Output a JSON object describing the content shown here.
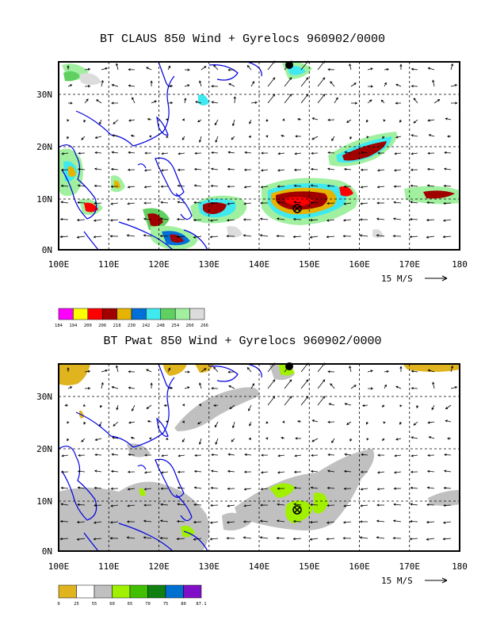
{
  "panel1": {
    "title": "BT CLAUS 850 Wind + Gyrelocs 960902/0000",
    "legend": {
      "labels": [
        "184",
        "194",
        "200",
        "206",
        "218",
        "230",
        "242",
        "248",
        "254",
        "260",
        "266"
      ],
      "colors": [
        "#ff00ff",
        "#ffff00",
        "#ff0000",
        "#a00000",
        "#e6b400",
        "#0070d8",
        "#40e8f0",
        "#60d060",
        "#a0f0a0",
        "#dcdcdc"
      ]
    }
  },
  "panel2": {
    "title": "BT Pwat 850 Wind + Gyrelocs 960902/0000",
    "legend": {
      "labels": [
        "0",
        "25",
        "55",
        "60",
        "65",
        "70",
        "75",
        "80",
        "87.1"
      ],
      "colors": [
        "#e0b41e",
        "#ffffff",
        "#c0c0c0",
        "#a0f000",
        "#40c000",
        "#108010",
        "#0070d0",
        "#8010c8"
      ]
    }
  },
  "axes": {
    "x_labels": [
      "100E",
      "110E",
      "120E",
      "130E",
      "140E",
      "150E",
      "160E",
      "170E",
      "180"
    ],
    "y_labels": [
      "0N",
      "10N",
      "20N",
      "30N"
    ],
    "vector_ref": "15 M/S"
  }
}
